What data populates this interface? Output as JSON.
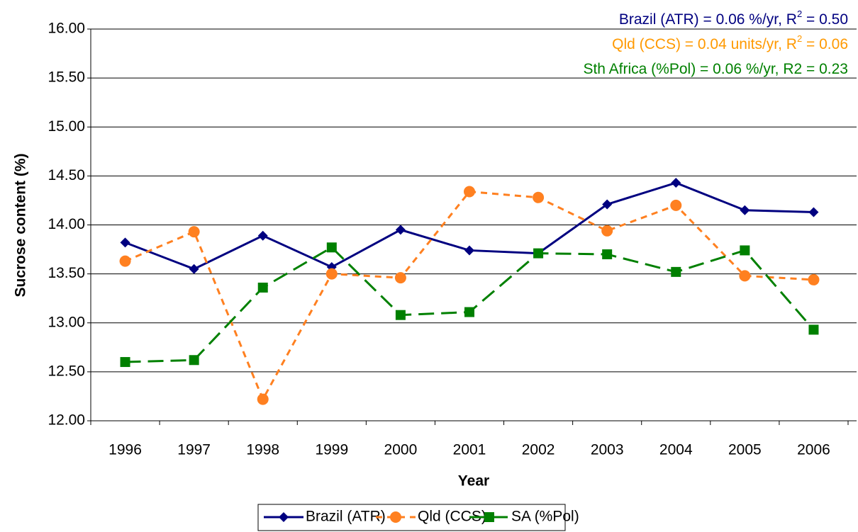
{
  "chart_data": {
    "type": "line",
    "x_label": "Year",
    "y_label": "Sucrose content (%)",
    "categories": [
      "1996",
      "1997",
      "1998",
      "1999",
      "2000",
      "2001",
      "2002",
      "2003",
      "2004",
      "2005",
      "2006"
    ],
    "series": [
      {
        "name": "Brazil (ATR)",
        "color": "#000080",
        "line_style": "solid",
        "marker": "diamond",
        "values": [
          13.82,
          13.55,
          13.89,
          13.57,
          13.95,
          13.74,
          13.71,
          14.21,
          14.43,
          14.15,
          14.13
        ]
      },
      {
        "name": "Qld (CCS)",
        "color": "#ff8020",
        "line_style": "dashed",
        "marker": "circle",
        "values": [
          13.63,
          13.93,
          12.22,
          13.5,
          13.46,
          14.34,
          14.28,
          13.94,
          14.2,
          13.48,
          13.44
        ]
      },
      {
        "name": "SA (%Pol)",
        "color": "#008000",
        "line_style": "long-dash",
        "marker": "square",
        "values": [
          12.6,
          12.62,
          13.36,
          13.77,
          13.08,
          13.11,
          13.71,
          13.7,
          13.52,
          13.74,
          12.93
        ]
      }
    ],
    "annotations": [
      {
        "color": "#000080",
        "parts": [
          "Brazil (ATR) = 0.06 %/yr, R",
          "2",
          " = 0.50"
        ]
      },
      {
        "color": "#ff9900",
        "parts": [
          "Qld (CCS) = 0.04 units/yr, R",
          "2",
          " = 0.06"
        ]
      },
      {
        "color": "#008000",
        "parts": [
          "Sth Africa (%Pol) = 0.06 %/yr, R2 = 0.23"
        ]
      }
    ],
    "ylim": [
      12,
      16
    ],
    "yticks": [
      {
        "value": 12,
        "label": "12.00"
      },
      {
        "value": 12.5,
        "label": "12.50"
      },
      {
        "value": 13,
        "label": "13.00"
      },
      {
        "value": 13.5,
        "label": "13.50"
      },
      {
        "value": 14,
        "label": "14.00"
      },
      {
        "value": 14.5,
        "label": "14.50"
      },
      {
        "value": 15,
        "label": "15.00"
      },
      {
        "value": 15.5,
        "label": "15.50"
      },
      {
        "value": 16,
        "label": "16.00"
      }
    ],
    "grid": true,
    "legend": "bottom"
  }
}
